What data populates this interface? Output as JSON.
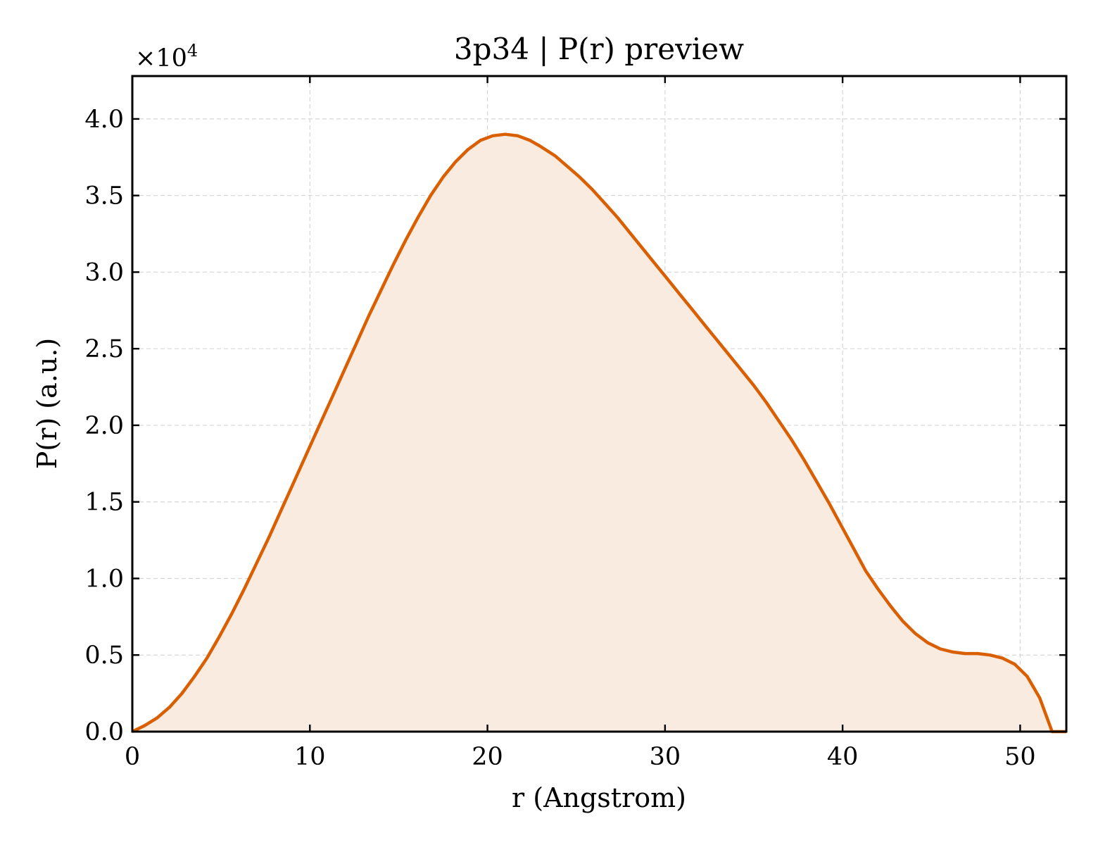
{
  "chart_data": {
    "type": "area",
    "title": "3p34 | P(r) preview",
    "xlabel": "r (Angstrom)",
    "ylabel": "P(r) (a.u.)",
    "y_multiplier_label": "×10",
    "y_multiplier_exp": "4",
    "xlim": [
      0,
      52.6
    ],
    "ylim": [
      0,
      4.28
    ],
    "x_ticks": [
      0,
      10,
      20,
      30,
      40,
      50
    ],
    "x_tick_labels": [
      "0",
      "10",
      "20",
      "30",
      "40",
      "50"
    ],
    "y_ticks": [
      0,
      0.5,
      1.0,
      1.5,
      2.0,
      2.5,
      3.0,
      3.5,
      4.0
    ],
    "y_tick_labels": [
      "0.0",
      "0.5",
      "1.0",
      "1.5",
      "2.0",
      "2.5",
      "3.0",
      "3.5",
      "4.0"
    ],
    "grid": true,
    "line_color": "#d95f02",
    "fill_color": "#f9ebe0",
    "series": [
      {
        "x": [
          0,
          0.7,
          1.4,
          2.1,
          2.8,
          3.5,
          4.2,
          4.9,
          5.6,
          6.3,
          7.0,
          7.7,
          8.4,
          9.1,
          9.8,
          10.5,
          11.2,
          11.9,
          12.6,
          13.3,
          14.0,
          14.7,
          15.4,
          16.1,
          16.8,
          17.5,
          18.2,
          18.9,
          19.6,
          20.3,
          21.0,
          21.7,
          22.4,
          23.0,
          23.8,
          24.5,
          25.2,
          25.9,
          26.6,
          27.3,
          28.0,
          28.7,
          29.4,
          30.1,
          30.8,
          31.5,
          32.2,
          32.9,
          33.6,
          34.3,
          35.0,
          35.7,
          36.4,
          37.1,
          37.8,
          38.5,
          39.2,
          39.9,
          40.6,
          41.3,
          42.0,
          42.7,
          43.4,
          44.1,
          44.8,
          45.5,
          46.2,
          46.9,
          47.6,
          48.3,
          49.0,
          49.7,
          50.4,
          51.1,
          51.8,
          52.6
        ],
        "y": [
          0.0,
          0.04,
          0.09,
          0.16,
          0.25,
          0.36,
          0.48,
          0.62,
          0.77,
          0.93,
          1.1,
          1.27,
          1.45,
          1.63,
          1.81,
          1.99,
          2.17,
          2.35,
          2.53,
          2.71,
          2.88,
          3.05,
          3.21,
          3.36,
          3.5,
          3.62,
          3.72,
          3.8,
          3.86,
          3.89,
          3.9,
          3.89,
          3.86,
          3.82,
          3.76,
          3.69,
          3.62,
          3.54,
          3.45,
          3.36,
          3.26,
          3.16,
          3.06,
          2.96,
          2.86,
          2.76,
          2.66,
          2.56,
          2.46,
          2.36,
          2.26,
          2.15,
          2.03,
          1.91,
          1.78,
          1.64,
          1.5,
          1.35,
          1.2,
          1.05,
          0.93,
          0.82,
          0.72,
          0.64,
          0.58,
          0.54,
          0.52,
          0.51,
          0.51,
          0.5,
          0.48,
          0.44,
          0.36,
          0.22,
          0.0,
          0.0
        ]
      }
    ]
  }
}
